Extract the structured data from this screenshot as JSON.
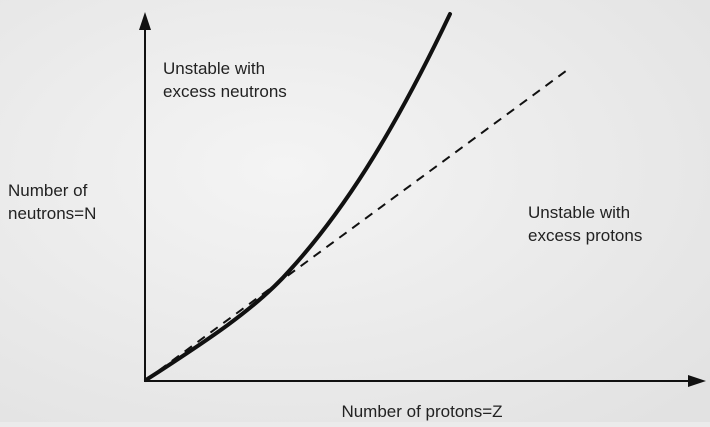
{
  "diagram": {
    "x_axis_label": "Number of protons=Z",
    "y_axis_label": [
      "Number of",
      "neutrons=N"
    ],
    "regions": [
      {
        "lines": [
          "Unstable with",
          "excess neutrons"
        ]
      },
      {
        "lines": [
          "Unstable with",
          "excess protons"
        ]
      }
    ]
  }
}
